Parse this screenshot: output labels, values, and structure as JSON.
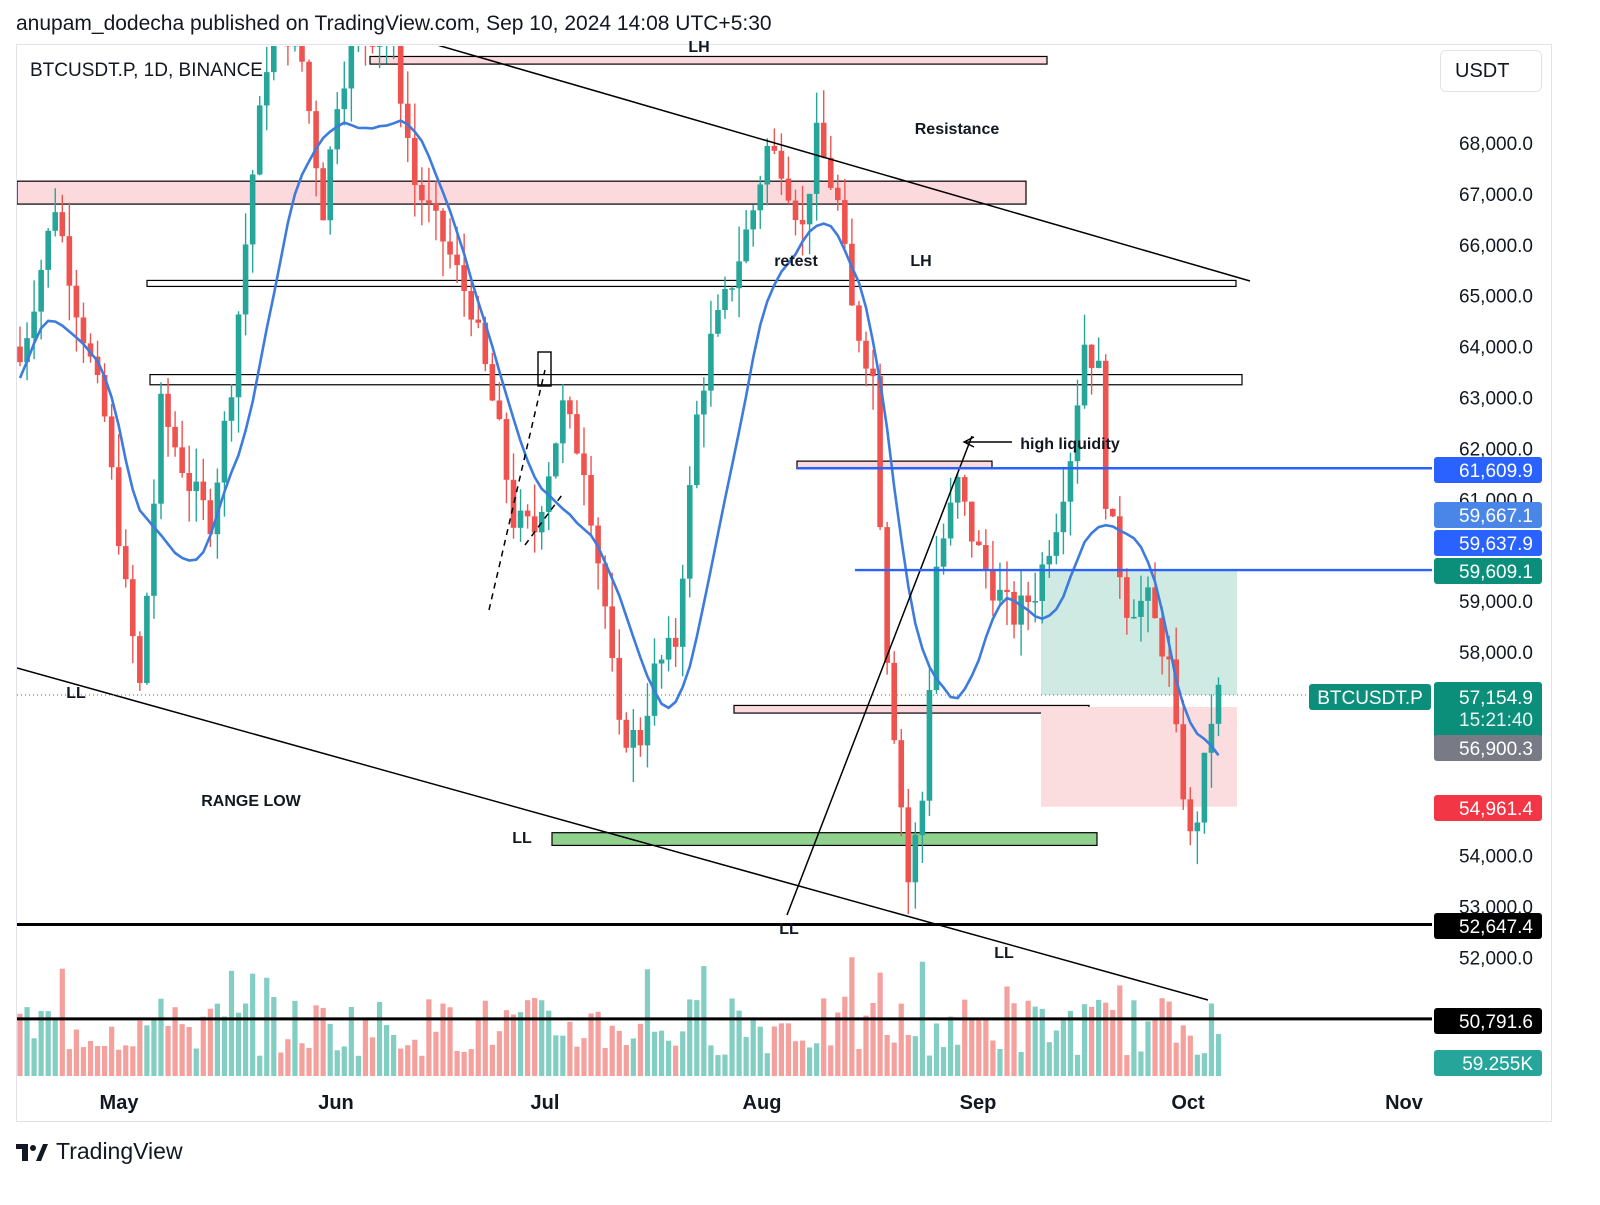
{
  "header": {
    "published": "anupam_dodecha published on TradingView.com, Sep 10, 2024 14:08 UTC+5:30"
  },
  "symbol": "BTCUSDT.P, 1D, BINANCE",
  "currency": "USDT",
  "footer": {
    "brand": "TradingView"
  },
  "colors": {
    "up": "#26a69a",
    "down": "#ef5350",
    "ma": "#3d7bdc",
    "blue_level": "#2962ff",
    "zone_red": "#fcd9dc",
    "zone_green": "#8fd18d",
    "target_fill": "#cfeae3",
    "stop_fill": "#fbdcdf"
  },
  "chart_data": {
    "type": "candlestick",
    "title": "BTCUSDT.P, 1D, BINANCE",
    "x_ticks": [
      "May",
      "Jun",
      "Jul",
      "Aug",
      "Sep",
      "Oct",
      "Nov"
    ],
    "y_ticks": [
      "52,000.0",
      "53,000.0",
      "54,000.0",
      "58,000.0",
      "59,000.0",
      "61,000.0",
      "62,000.0",
      "63,000.0",
      "64,000.0",
      "65,000.0",
      "66,000.0",
      "67,000.0",
      "68,000.0"
    ],
    "ylim": [
      50200,
      69700
    ],
    "price_tags": [
      {
        "label": "61,609.9",
        "value": 61609.9,
        "color": "#2962ff"
      },
      {
        "label": "59,667.1",
        "value": 59667.1,
        "color": "#4a86e8"
      },
      {
        "label": "59,637.9",
        "value": 59637.9,
        "color": "#2962ff"
      },
      {
        "label": "59,609.1",
        "value": 59609.1,
        "color": "#0c8f7a"
      },
      {
        "label": "57,154.9",
        "value": 57154.9,
        "color": "#0c8f7a",
        "sub": "15:21:40"
      },
      {
        "label": "56,900.3",
        "value": 56900.3,
        "color": "#787b86"
      },
      {
        "label": "54,961.4",
        "value": 54961.4,
        "color": "#f23645"
      },
      {
        "label": "52,647.4",
        "value": 52647.4,
        "color": "#000000"
      },
      {
        "label": "50,791.6",
        "value": 50791.6,
        "color": "#000000"
      },
      {
        "label": "59.255K",
        "value": null,
        "color": "#26a69a"
      }
    ],
    "symbol_tag": "BTCUSDT.P",
    "annotations": [
      "LH",
      "Resistance",
      "retest",
      "LH",
      "high liquidity",
      "LL",
      "RANGE LOW",
      "LL",
      "LL",
      "LL"
    ],
    "zones": [
      {
        "type": "supply",
        "top": 69700,
        "bottom": 69550
      },
      {
        "type": "supply",
        "top": 67250,
        "bottom": 66800
      },
      {
        "type": "level",
        "top": 65300,
        "bottom": 65200
      },
      {
        "type": "level",
        "top": 63450,
        "bottom": 63250
      },
      {
        "type": "supply",
        "top": 61750,
        "bottom": 61600
      },
      {
        "type": "supply",
        "top": 56950,
        "bottom": 56800
      },
      {
        "type": "demand",
        "top": 54450,
        "bottom": 54200
      }
    ],
    "position": {
      "entry": 57154.9,
      "target": 59609.1,
      "stop": 54961.4
    },
    "ma_label": "moving average",
    "grid": false
  }
}
